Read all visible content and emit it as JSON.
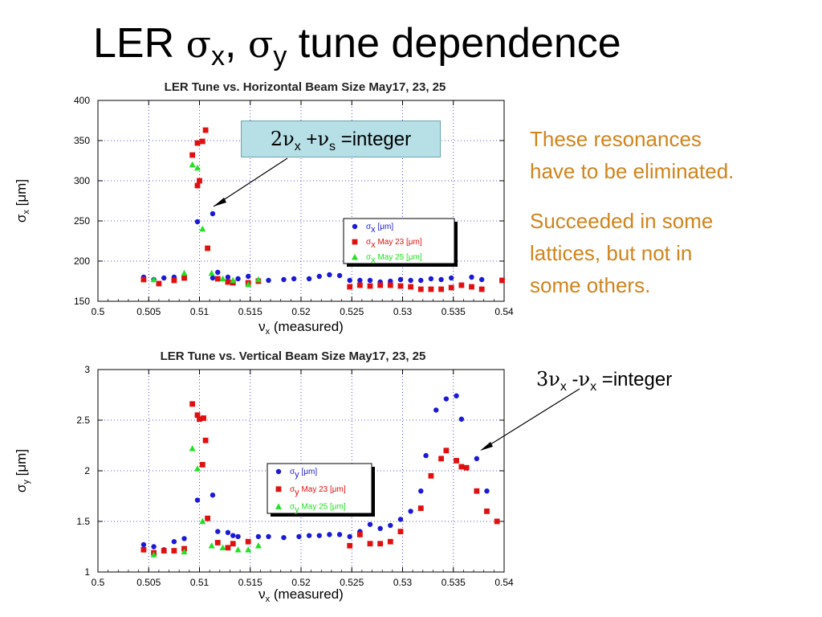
{
  "slide": {
    "title_prefix": "LER ",
    "title_sigma": "σ",
    "title_x": "x",
    "title_sep": ", ",
    "title_y": "y",
    "title_suffix": " tune dependence"
  },
  "callout_top": {
    "c2": "2",
    "nu1": "ν",
    "sub1": "x",
    "plus": " +",
    "nu2": "ν",
    "sub2": "s",
    "eq": " =integer"
  },
  "callout_bottom": {
    "c3": "3",
    "nu1": "ν",
    "sub1": "x",
    "minus": " -",
    "nu2": "ν",
    "sub2": "x",
    "eq": " =integer"
  },
  "notes": {
    "n1_line1": "These resonances",
    "n1_line2": "have to be eliminated.",
    "n2_line1": "Succeeded in some",
    "n2_line2": "lattices, but not in",
    "n2_line3": "some others."
  },
  "colors": {
    "blue": "#1a1ad6",
    "red": "#e01010",
    "green": "#22e022",
    "orange": "#d0841c",
    "callout_bg": "#b6dfe6",
    "grid": "#2020c8",
    "arrow": "#000000"
  },
  "chart_data": [
    {
      "type": "scatter",
      "title": "LER Tune vs. Horizontal Beam Size May17, 23, 25",
      "xlabel": "ν",
      "xlabel_sub": "x",
      "xlabel_suffix": " (measured)",
      "ylabel": "σ",
      "ylabel_sub": "x",
      "ylabel_suffix": " [μm]",
      "xlim": [
        0.5,
        0.54
      ],
      "ylim": [
        150,
        400
      ],
      "xticks": [
        "0.5",
        "0.505",
        "0.51",
        "0.515",
        "0.52",
        "0.525",
        "0.53",
        "0.535",
        "0.54"
      ],
      "yticks": [
        "150",
        "200",
        "250",
        "300",
        "350",
        "400"
      ],
      "grid": true,
      "legend_position": "center-right",
      "legend": [
        {
          "sym": "σ",
          "sub": "x",
          "text": " [μm]",
          "color": "#1a1ad6",
          "marker": "circle"
        },
        {
          "sym": "σ",
          "sub": "x",
          "text": " May 23 [μm]",
          "color": "#e01010",
          "marker": "square"
        },
        {
          "sym": "σ",
          "sub": "x",
          "text": " May 25 [μm]",
          "color": "#22e022",
          "marker": "triangle"
        }
      ],
      "series": [
        {
          "color": "#1a1ad6",
          "marker": "circle",
          "points": [
            [
              0.5045,
              180
            ],
            [
              0.5055,
              177
            ],
            [
              0.5065,
              179
            ],
            [
              0.5075,
              180
            ],
            [
              0.5085,
              181
            ],
            [
              0.5098,
              249
            ],
            [
              0.5113,
              259
            ],
            [
              0.5113,
              179
            ],
            [
              0.5118,
              186
            ],
            [
              0.5128,
              180
            ],
            [
              0.5138,
              178
            ],
            [
              0.5148,
              181
            ],
            [
              0.5158,
              176
            ],
            [
              0.5168,
              176
            ],
            [
              0.5183,
              177
            ],
            [
              0.5193,
              178
            ],
            [
              0.5208,
              178
            ],
            [
              0.5218,
              181
            ],
            [
              0.5228,
              183
            ],
            [
              0.5238,
              182
            ],
            [
              0.5248,
              176
            ],
            [
              0.5258,
              176
            ],
            [
              0.5268,
              176
            ],
            [
              0.5278,
              174
            ],
            [
              0.5288,
              175
            ],
            [
              0.5298,
              177
            ],
            [
              0.5308,
              176
            ],
            [
              0.5318,
              176
            ],
            [
              0.5328,
              178
            ],
            [
              0.5338,
              177
            ],
            [
              0.5348,
              179
            ],
            [
              0.5368,
              180
            ],
            [
              0.5378,
              177
            ]
          ]
        },
        {
          "color": "#e01010",
          "marker": "square",
          "points": [
            [
              0.5045,
              177
            ],
            [
              0.506,
              172
            ],
            [
              0.5075,
              176
            ],
            [
              0.5085,
              179
            ],
            [
              0.5093,
              332
            ],
            [
              0.5098,
              294
            ],
            [
              0.51,
              300
            ],
            [
              0.5098,
              347
            ],
            [
              0.5103,
              349
            ],
            [
              0.5106,
              363
            ],
            [
              0.5108,
              216
            ],
            [
              0.5118,
              178
            ],
            [
              0.5128,
              174
            ],
            [
              0.5133,
              173
            ],
            [
              0.5148,
              173
            ],
            [
              0.5158,
              175
            ],
            [
              0.5248,
              168
            ],
            [
              0.5258,
              170
            ],
            [
              0.5268,
              169
            ],
            [
              0.5278,
              170
            ],
            [
              0.5288,
              170
            ],
            [
              0.5298,
              169
            ],
            [
              0.5308,
              168
            ],
            [
              0.5318,
              165
            ],
            [
              0.5328,
              165
            ],
            [
              0.5338,
              165
            ],
            [
              0.5348,
              167
            ],
            [
              0.5358,
              170
            ],
            [
              0.5368,
              168
            ],
            [
              0.5378,
              165
            ],
            [
              0.5398,
              176
            ]
          ]
        },
        {
          "color": "#22e022",
          "marker": "triangle",
          "points": [
            [
              0.5055,
              177
            ],
            [
              0.5085,
              185
            ],
            [
              0.5093,
              320
            ],
            [
              0.5098,
              316
            ],
            [
              0.5103,
              240
            ],
            [
              0.5112,
              185
            ],
            [
              0.5123,
              178
            ],
            [
              0.5133,
              176
            ],
            [
              0.5148,
              171
            ],
            [
              0.5158,
              177
            ]
          ]
        }
      ]
    },
    {
      "type": "scatter",
      "title": "LER Tune vs. Vertical Beam Size May17, 23, 25",
      "xlabel": "ν",
      "xlabel_sub": "x",
      "xlabel_suffix": " (measured)",
      "ylabel": "σ",
      "ylabel_sub": "y",
      "ylabel_suffix": " [μm]",
      "xlim": [
        0.5,
        0.54
      ],
      "ylim": [
        1,
        3
      ],
      "xticks": [
        "0.5",
        "0.505",
        "0.51",
        "0.515",
        "0.52",
        "0.525",
        "0.53",
        "0.535",
        "0.54"
      ],
      "yticks": [
        "1",
        "1.5",
        "2",
        "2.5",
        "3"
      ],
      "grid": true,
      "legend_position": "center",
      "legend": [
        {
          "sym": "σ",
          "sub": "y",
          "text": " [μm]",
          "color": "#1a1ad6",
          "marker": "circle"
        },
        {
          "sym": "σ",
          "sub": "y",
          "text": " May 23 [μm]",
          "color": "#e01010",
          "marker": "square"
        },
        {
          "sym": "σ",
          "sub": "y",
          "text": " May 25 [μm]",
          "color": "#22e022",
          "marker": "triangle"
        }
      ],
      "series": [
        {
          "color": "#1a1ad6",
          "marker": "circle",
          "points": [
            [
              0.5045,
              1.27
            ],
            [
              0.5055,
              1.25
            ],
            [
              0.5065,
              1.22
            ],
            [
              0.5075,
              1.3
            ],
            [
              0.5085,
              1.33
            ],
            [
              0.5098,
              1.71
            ],
            [
              0.5113,
              1.76
            ],
            [
              0.5118,
              1.4
            ],
            [
              0.5128,
              1.39
            ],
            [
              0.5133,
              1.36
            ],
            [
              0.5138,
              1.35
            ],
            [
              0.5158,
              1.35
            ],
            [
              0.5168,
              1.35
            ],
            [
              0.5183,
              1.34
            ],
            [
              0.5198,
              1.35
            ],
            [
              0.5208,
              1.36
            ],
            [
              0.5218,
              1.36
            ],
            [
              0.5228,
              1.37
            ],
            [
              0.5238,
              1.37
            ],
            [
              0.5248,
              1.35
            ],
            [
              0.5258,
              1.4
            ],
            [
              0.5268,
              1.47
            ],
            [
              0.5278,
              1.43
            ],
            [
              0.5288,
              1.46
            ],
            [
              0.5298,
              1.52
            ],
            [
              0.5308,
              1.6
            ],
            [
              0.5318,
              1.8
            ],
            [
              0.5323,
              2.15
            ],
            [
              0.5333,
              2.6
            ],
            [
              0.5343,
              2.71
            ],
            [
              0.5353,
              2.74
            ],
            [
              0.5358,
              2.51
            ],
            [
              0.5373,
              2.12
            ],
            [
              0.5383,
              1.8
            ]
          ]
        },
        {
          "color": "#e01010",
          "marker": "square",
          "points": [
            [
              0.5045,
              1.22
            ],
            [
              0.5055,
              1.19
            ],
            [
              0.5065,
              1.21
            ],
            [
              0.5075,
              1.21
            ],
            [
              0.5085,
              1.23
            ],
            [
              0.5093,
              2.66
            ],
            [
              0.5098,
              2.55
            ],
            [
              0.51,
              2.51
            ],
            [
              0.5104,
              2.52
            ],
            [
              0.5103,
              2.06
            ],
            [
              0.5106,
              2.3
            ],
            [
              0.5108,
              1.53
            ],
            [
              0.5118,
              1.29
            ],
            [
              0.5128,
              1.24
            ],
            [
              0.5133,
              1.28
            ],
            [
              0.5148,
              1.3
            ],
            [
              0.5248,
              1.26
            ],
            [
              0.5258,
              1.37
            ],
            [
              0.5268,
              1.28
            ],
            [
              0.5278,
              1.28
            ],
            [
              0.5288,
              1.3
            ],
            [
              0.5298,
              1.4
            ],
            [
              0.5318,
              1.63
            ],
            [
              0.5328,
              1.95
            ],
            [
              0.5338,
              2.12
            ],
            [
              0.5343,
              2.2
            ],
            [
              0.5353,
              2.1
            ],
            [
              0.5358,
              2.04
            ],
            [
              0.5363,
              2.03
            ],
            [
              0.5373,
              1.8
            ],
            [
              0.5383,
              1.6
            ],
            [
              0.5393,
              1.5
            ]
          ]
        },
        {
          "color": "#22e022",
          "marker": "triangle",
          "points": [
            [
              0.5055,
              1.17
            ],
            [
              0.5085,
              1.2
            ],
            [
              0.5093,
              2.22
            ],
            [
              0.5098,
              2.02
            ],
            [
              0.5103,
              1.5
            ],
            [
              0.5112,
              1.26
            ],
            [
              0.5123,
              1.24
            ],
            [
              0.5138,
              1.22
            ],
            [
              0.5148,
              1.22
            ],
            [
              0.5158,
              1.26
            ]
          ]
        }
      ]
    }
  ]
}
